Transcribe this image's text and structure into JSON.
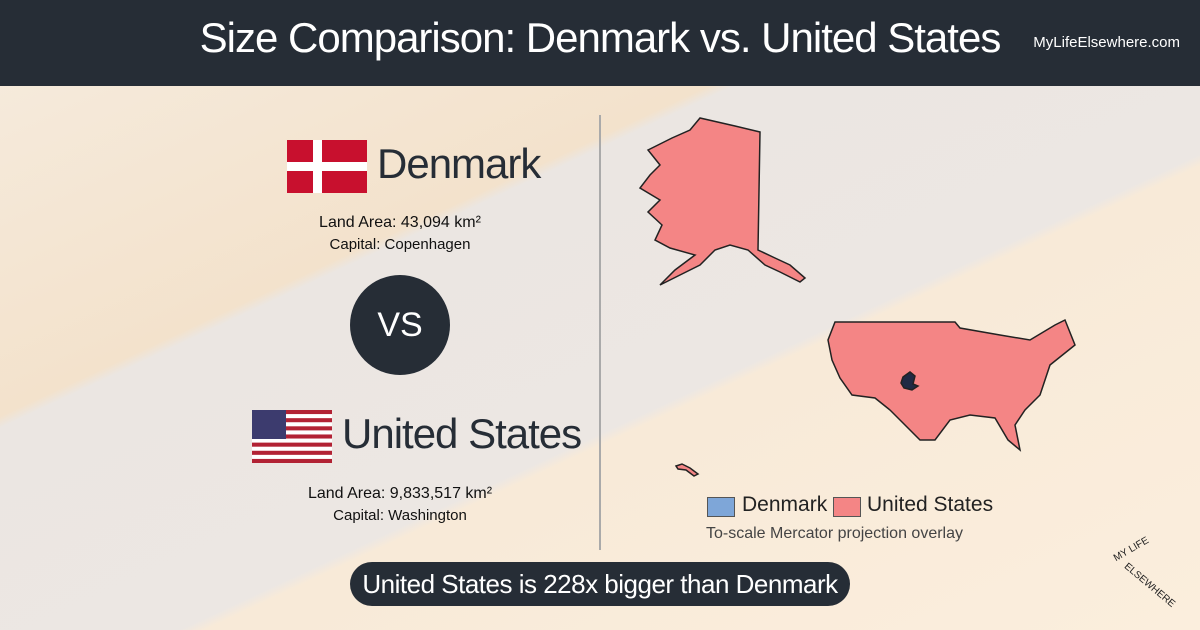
{
  "header": {
    "title": "Size Comparison: Denmark vs. United States",
    "site": "MyLifeElsewhere.com"
  },
  "countries": [
    {
      "name": "Denmark",
      "area": "Land Area: 43,094 km²",
      "capital": "Capital: Copenhagen"
    },
    {
      "name": "United States",
      "area": "Land Area: 9,833,517 km²",
      "capital": "Capital: Washington"
    }
  ],
  "vs": "VS",
  "legend": [
    {
      "label": "Denmark"
    },
    {
      "label": "United States"
    }
  ],
  "note": "To-scale Mercator projection overlay",
  "banner": "United States is 228x bigger than Denmark",
  "logo": {
    "top": "MY LIFE",
    "bottom": "ELSEWHERE"
  }
}
